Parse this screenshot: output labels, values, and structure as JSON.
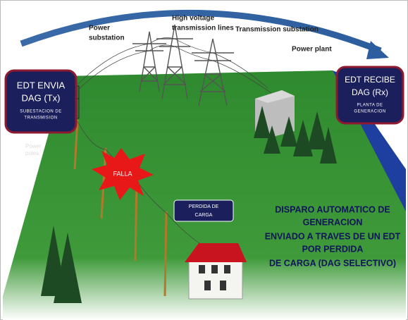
{
  "labels": {
    "power_substation": [
      "Power",
      "substation"
    ],
    "high_voltage_lines": [
      "High voltage",
      "transmission lines"
    ],
    "transmission_substation": "Transmission substation",
    "power_plant": "Power plant",
    "power_poles": [
      "Power",
      "poles"
    ]
  },
  "sender": {
    "title": [
      "EDT ENVIA",
      "DAG (Tx)"
    ],
    "subtitle": [
      "SUBESTACION DE",
      "TRANSMISION"
    ]
  },
  "receiver": {
    "title": [
      "EDT RECIBE",
      "DAG (Rx)"
    ],
    "subtitle": [
      "PLANTA DE",
      "GENERACION"
    ]
  },
  "fault": "FALLA",
  "load_loss": [
    "PERDIDA DE",
    "CARGA"
  ],
  "message": [
    "DISPARO AUTOMATICO DE",
    "GENERACION",
    "ENVIADO A TRAVES DE UN EDT",
    "POR PERDIDA",
    "DE CARGA (DAG SELECTIVO)"
  ]
}
